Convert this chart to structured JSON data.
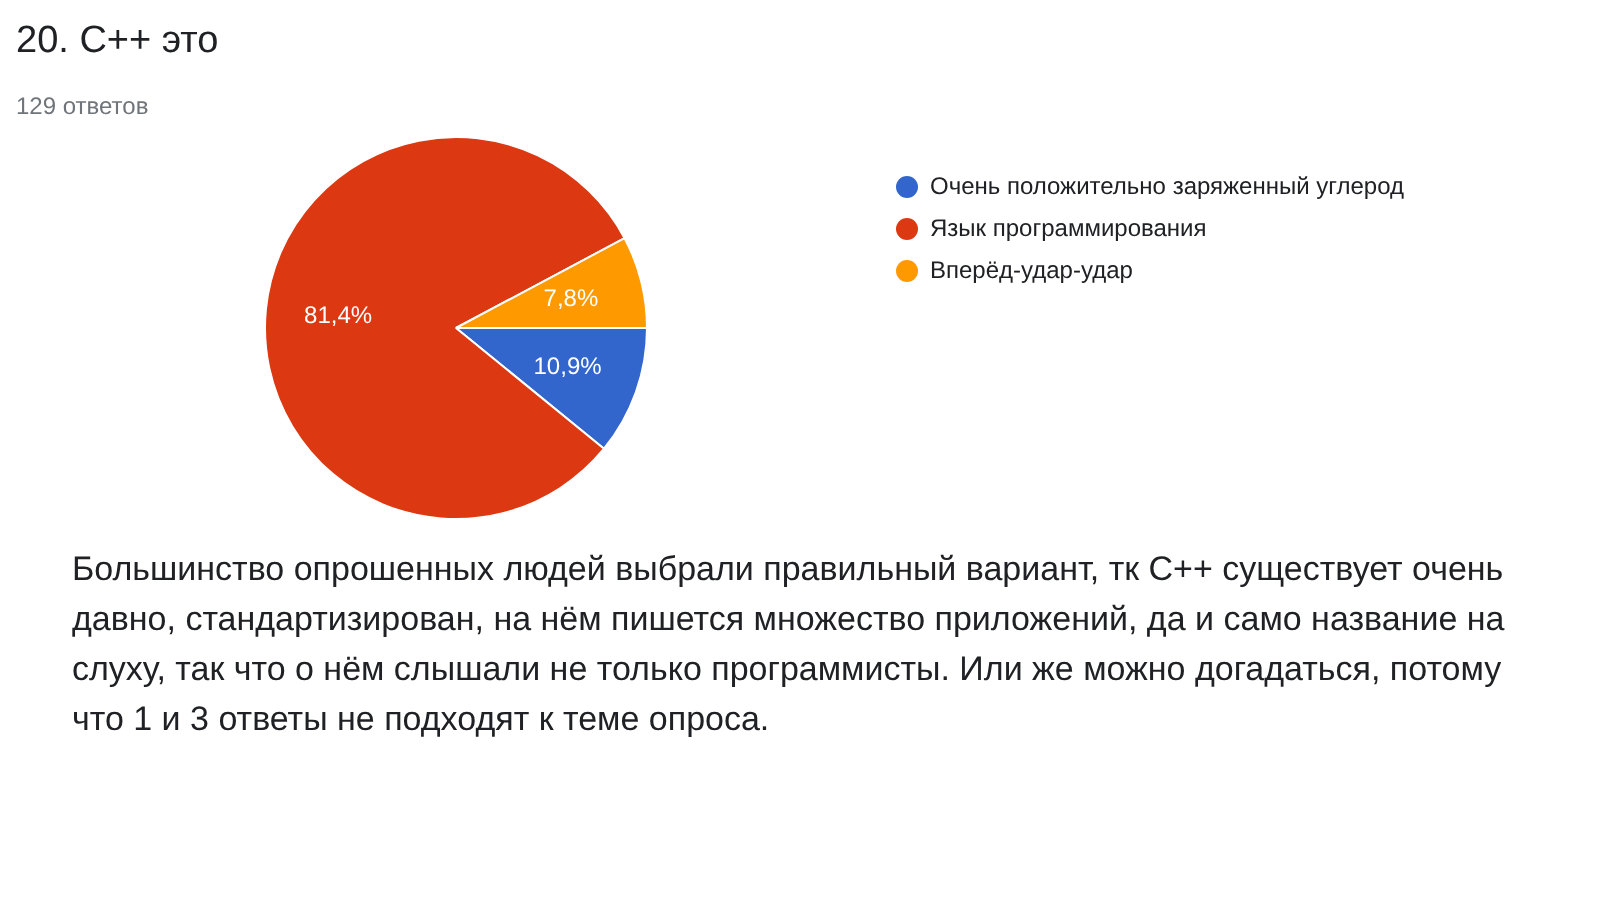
{
  "chart_data": {
    "type": "pie",
    "title": "20. C++ это",
    "subtitle": "129 ответов",
    "categories": [
      "Очень положительно заряженный углерод",
      "Язык программирования",
      "Вперёд-удар-удар"
    ],
    "values": [
      10.9,
      81.4,
      7.8
    ],
    "colors": [
      "#3366cc",
      "#dc3912",
      "#ff9900"
    ],
    "value_labels": [
      "10,9%",
      "81,4%",
      "7,8%"
    ],
    "legend": "right",
    "annotations": [
      "Большинство опрошенных людей выбрали правильный вариант, тк C++ существует очень давно, стандартизирован, на нём пишется множество приложений, да и само название на слуху, так что о нём слышали не только программисты. Или же можно догадаться, потому что  1 и 3 ответы не подходят к теме опроса."
    ]
  }
}
